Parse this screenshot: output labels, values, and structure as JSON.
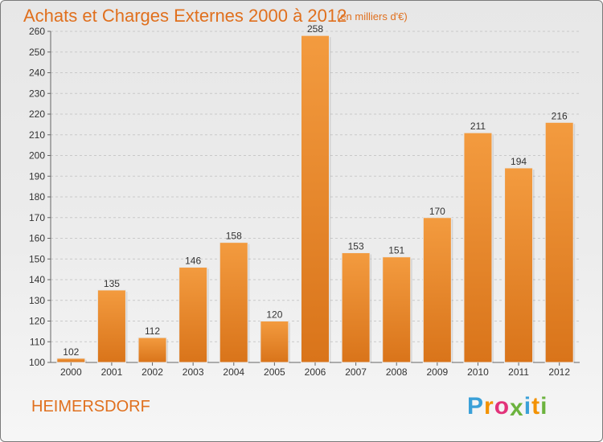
{
  "title": "Achats et Charges Externes 2000 à 2012",
  "unit_note": "(en milliers d'€)",
  "commune": "HEIMERSDORF",
  "logo": {
    "letters": [
      "P",
      "r",
      "o",
      "x",
      "i",
      "t",
      "i"
    ],
    "colors": [
      "#3aa0d8",
      "#f39200",
      "#e2337a",
      "#6cb33e",
      "#3aa0d8",
      "#f39200",
      "#6cb33e"
    ]
  },
  "chart_data": {
    "type": "bar",
    "title": "Achats et Charges Externes 2000 à 2012",
    "xlabel": "",
    "ylabel": "",
    "categories": [
      "2000",
      "2001",
      "2002",
      "2003",
      "2004",
      "2005",
      "2006",
      "2007",
      "2008",
      "2009",
      "2010",
      "2011",
      "2012"
    ],
    "values": [
      102,
      135,
      112,
      146,
      158,
      120,
      258,
      153,
      151,
      170,
      211,
      194,
      216
    ],
    "ylim": [
      100,
      260
    ],
    "yticks": [
      100,
      110,
      120,
      130,
      140,
      150,
      160,
      170,
      180,
      190,
      200,
      210,
      220,
      230,
      240,
      250,
      260
    ],
    "grid": "horizontal dashed",
    "bar_color": "#f39b3f",
    "bar_color_dark": "#d9741a"
  }
}
